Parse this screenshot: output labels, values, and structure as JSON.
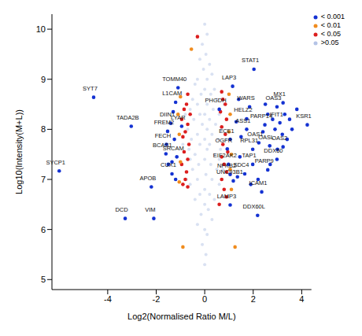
{
  "chart_data": {
    "type": "scatter",
    "xlabel": "Log2(Normalised Ratio M/L)",
    "ylabel": "Log10(Intensity(M+L))",
    "xlim": [
      -6.3,
      4.4
    ],
    "xticks": [
      -4,
      -2,
      0,
      2,
      4
    ],
    "ylim": [
      4.8,
      10.3
    ],
    "yticks": [
      5,
      6,
      7,
      8,
      9,
      10
    ],
    "legend": "top-right",
    "series": [
      {
        "name": ">0.05",
        "color": "#b4c3e6",
        "x": [
          0,
          0.1,
          -0.1,
          0.05,
          -0.2,
          0.2,
          -0.05,
          0.3,
          -0.3,
          0.1,
          -0.4,
          0.4,
          0,
          -0.15,
          0.25,
          -0.5,
          0.5,
          0.1,
          -0.3,
          0.35,
          -0.6,
          0,
          0.6,
          -0.2,
          0.2,
          -0.45,
          0.45,
          -0.1,
          0.7,
          -0.7,
          0.1,
          -0.3,
          0.3,
          -0.55,
          0.55,
          0,
          -0.2,
          0.2,
          0.65,
          -0.65,
          0.1,
          -0.4,
          0.4,
          0,
          -0.6,
          0.6,
          0.25,
          -0.25,
          -0.5,
          0.5,
          0.05,
          -0.3,
          0.3,
          0.6,
          -0.6,
          0,
          -0.2,
          0.2,
          0.4,
          -0.4,
          0,
          0.15,
          -0.15,
          0.3,
          -0.3,
          0,
          0.1,
          -0.1,
          0.05,
          0,
          0.8,
          -0.8,
          0.75,
          -0.75,
          0.9,
          -0.9
        ],
        "y": [
          10.1,
          9.9,
          9.7,
          9.5,
          9.4,
          9.3,
          9.2,
          9.1,
          9.0,
          9.0,
          8.9,
          8.8,
          8.8,
          8.7,
          8.7,
          8.6,
          8.6,
          8.5,
          8.5,
          8.4,
          8.4,
          8.3,
          8.3,
          8.3,
          8.2,
          8.2,
          8.1,
          8.1,
          8.0,
          8.0,
          8.0,
          7.9,
          7.9,
          7.8,
          7.8,
          7.8,
          7.7,
          7.7,
          7.6,
          7.6,
          7.6,
          7.5,
          7.5,
          7.4,
          7.4,
          7.4,
          7.3,
          7.3,
          7.2,
          7.2,
          7.1,
          7.0,
          7.0,
          6.9,
          6.9,
          6.8,
          6.7,
          6.7,
          6.6,
          6.6,
          6.5,
          6.4,
          6.3,
          6.2,
          6.1,
          6.0,
          5.9,
          5.7,
          5.5,
          5.3,
          8.5,
          8.3,
          7.2,
          7.0,
          7.8,
          7.7
        ]
      },
      {
        "name": "< 0.05",
        "color": "#dc1e1e",
        "x": [
          -0.3,
          -0.7,
          -0.75,
          -0.85,
          -0.6,
          -0.95,
          -0.7,
          -0.8,
          -0.9,
          -0.65,
          -0.85,
          -0.7,
          -0.95,
          -0.75,
          -0.8,
          -0.9,
          -0.7,
          0.7,
          0.75,
          0.85,
          0.65,
          0.9,
          0.7,
          0.85,
          0.75,
          0.95,
          0.7,
          0.8,
          0.9,
          0.7,
          0.8,
          0.9,
          0.6
        ],
        "y": [
          9.85,
          8.7,
          8.5,
          8.4,
          8.3,
          8.2,
          8.1,
          7.95,
          7.85,
          7.7,
          7.55,
          7.4,
          7.3,
          7.15,
          7.0,
          6.9,
          6.85,
          8.75,
          8.6,
          8.5,
          8.35,
          8.2,
          8.05,
          7.9,
          7.7,
          7.55,
          7.45,
          7.3,
          7.15,
          7.0,
          6.8,
          6.65,
          6.5
        ]
      },
      {
        "name": "< 0.01",
        "color": "#f08c1e",
        "x": [
          -0.55,
          -1.0,
          -1.1,
          -1.05,
          -1.0,
          -1.05,
          -0.9,
          1.0,
          1.05,
          1.0,
          1.1,
          1.05,
          1.1,
          1.25
        ],
        "y": [
          9.6,
          8.65,
          8.3,
          7.9,
          7.35,
          6.95,
          5.65,
          8.7,
          8.3,
          7.95,
          7.5,
          7.2,
          6.8,
          5.65
        ]
      },
      {
        "name": "< 0.001",
        "color": "#1432d2",
        "x": [
          -4.58,
          -6.0,
          -3.03,
          -1.53,
          -1.58,
          -1.1,
          -1.2,
          -1.4,
          -0.95,
          -1.6,
          -1.15,
          -1.35,
          -2.2,
          -3.28,
          -2.1,
          2.03,
          1.15,
          1.85,
          1.73,
          0.6,
          1.73,
          2.48,
          2.98,
          3.23,
          3.1,
          4.23,
          2.23,
          3.23,
          2.68,
          1.05,
          1.98,
          2.98,
          2.6,
          1.98,
          0.93,
          0.98,
          1.65,
          1.05,
          1.18,
          2.35,
          1.05,
          2.18,
          -1.3,
          -1.25,
          -1.35,
          -1.2,
          -1.5,
          1.4,
          1.3,
          1.5,
          1.45,
          1.35,
          2.5,
          2.6,
          2.8,
          3.3,
          3.5,
          3.6,
          3.2,
          2.4,
          3.0,
          2.7,
          2.2,
          1.9,
          3.4,
          3.8,
          2.9
        ],
        "y": [
          8.64,
          7.17,
          8.06,
          7.96,
          7.7,
          8.83,
          8.54,
          8.12,
          8.06,
          7.51,
          7.45,
          7.11,
          6.85,
          6.22,
          6.22,
          9.2,
          8.86,
          8.45,
          8.21,
          8.4,
          8.0,
          8.09,
          8.45,
          8.53,
          8.13,
          8.09,
          7.73,
          7.65,
          7.67,
          7.8,
          7.6,
          7.4,
          7.19,
          7.3,
          7.61,
          7.3,
          7.11,
          7.1,
          6.97,
          6.75,
          6.49,
          6.28,
          8.35,
          7.8,
          7.35,
          7.0,
          7.3,
          8.6,
          8.15,
          7.85,
          7.45,
          7.05,
          8.5,
          8.3,
          8.2,
          8.3,
          8.2,
          8.0,
          7.9,
          7.95,
          7.6,
          7.3,
          7.0,
          6.9,
          7.8,
          8.4,
          8.0
        ],
        "labels": [
          "SYT7",
          "SYCP1",
          "TADA2B",
          "FREM2",
          "FECH",
          "TOMM40",
          "L1CAM",
          "DIIN1",
          "LYAR",
          "BCAS1",
          "SRCAM",
          "CUX1",
          "APOB",
          "DCD",
          "VIM",
          "STAT1",
          "LAP3",
          "WARS",
          "HELZ2",
          "PHGDH",
          "ASS1",
          "PARP14",
          "OAS3",
          "MX1",
          "IFIT1",
          "KSR1",
          "OAS1",
          "OAS2",
          "OASL",
          "ECE1",
          "RPL31",
          "DDX60",
          "PARP9",
          "TAP1",
          "OGFR",
          "EIF2AK2",
          "SDC4",
          "NFKB2",
          "UNC93B1",
          "ICAM1",
          "LAMP3",
          "DDX60L",
          null,
          null,
          null,
          null,
          null,
          null,
          null,
          null,
          null,
          null,
          null,
          null,
          null,
          null,
          null,
          null,
          null,
          null,
          null,
          null,
          null,
          null,
          null,
          null,
          null
        ]
      }
    ]
  }
}
